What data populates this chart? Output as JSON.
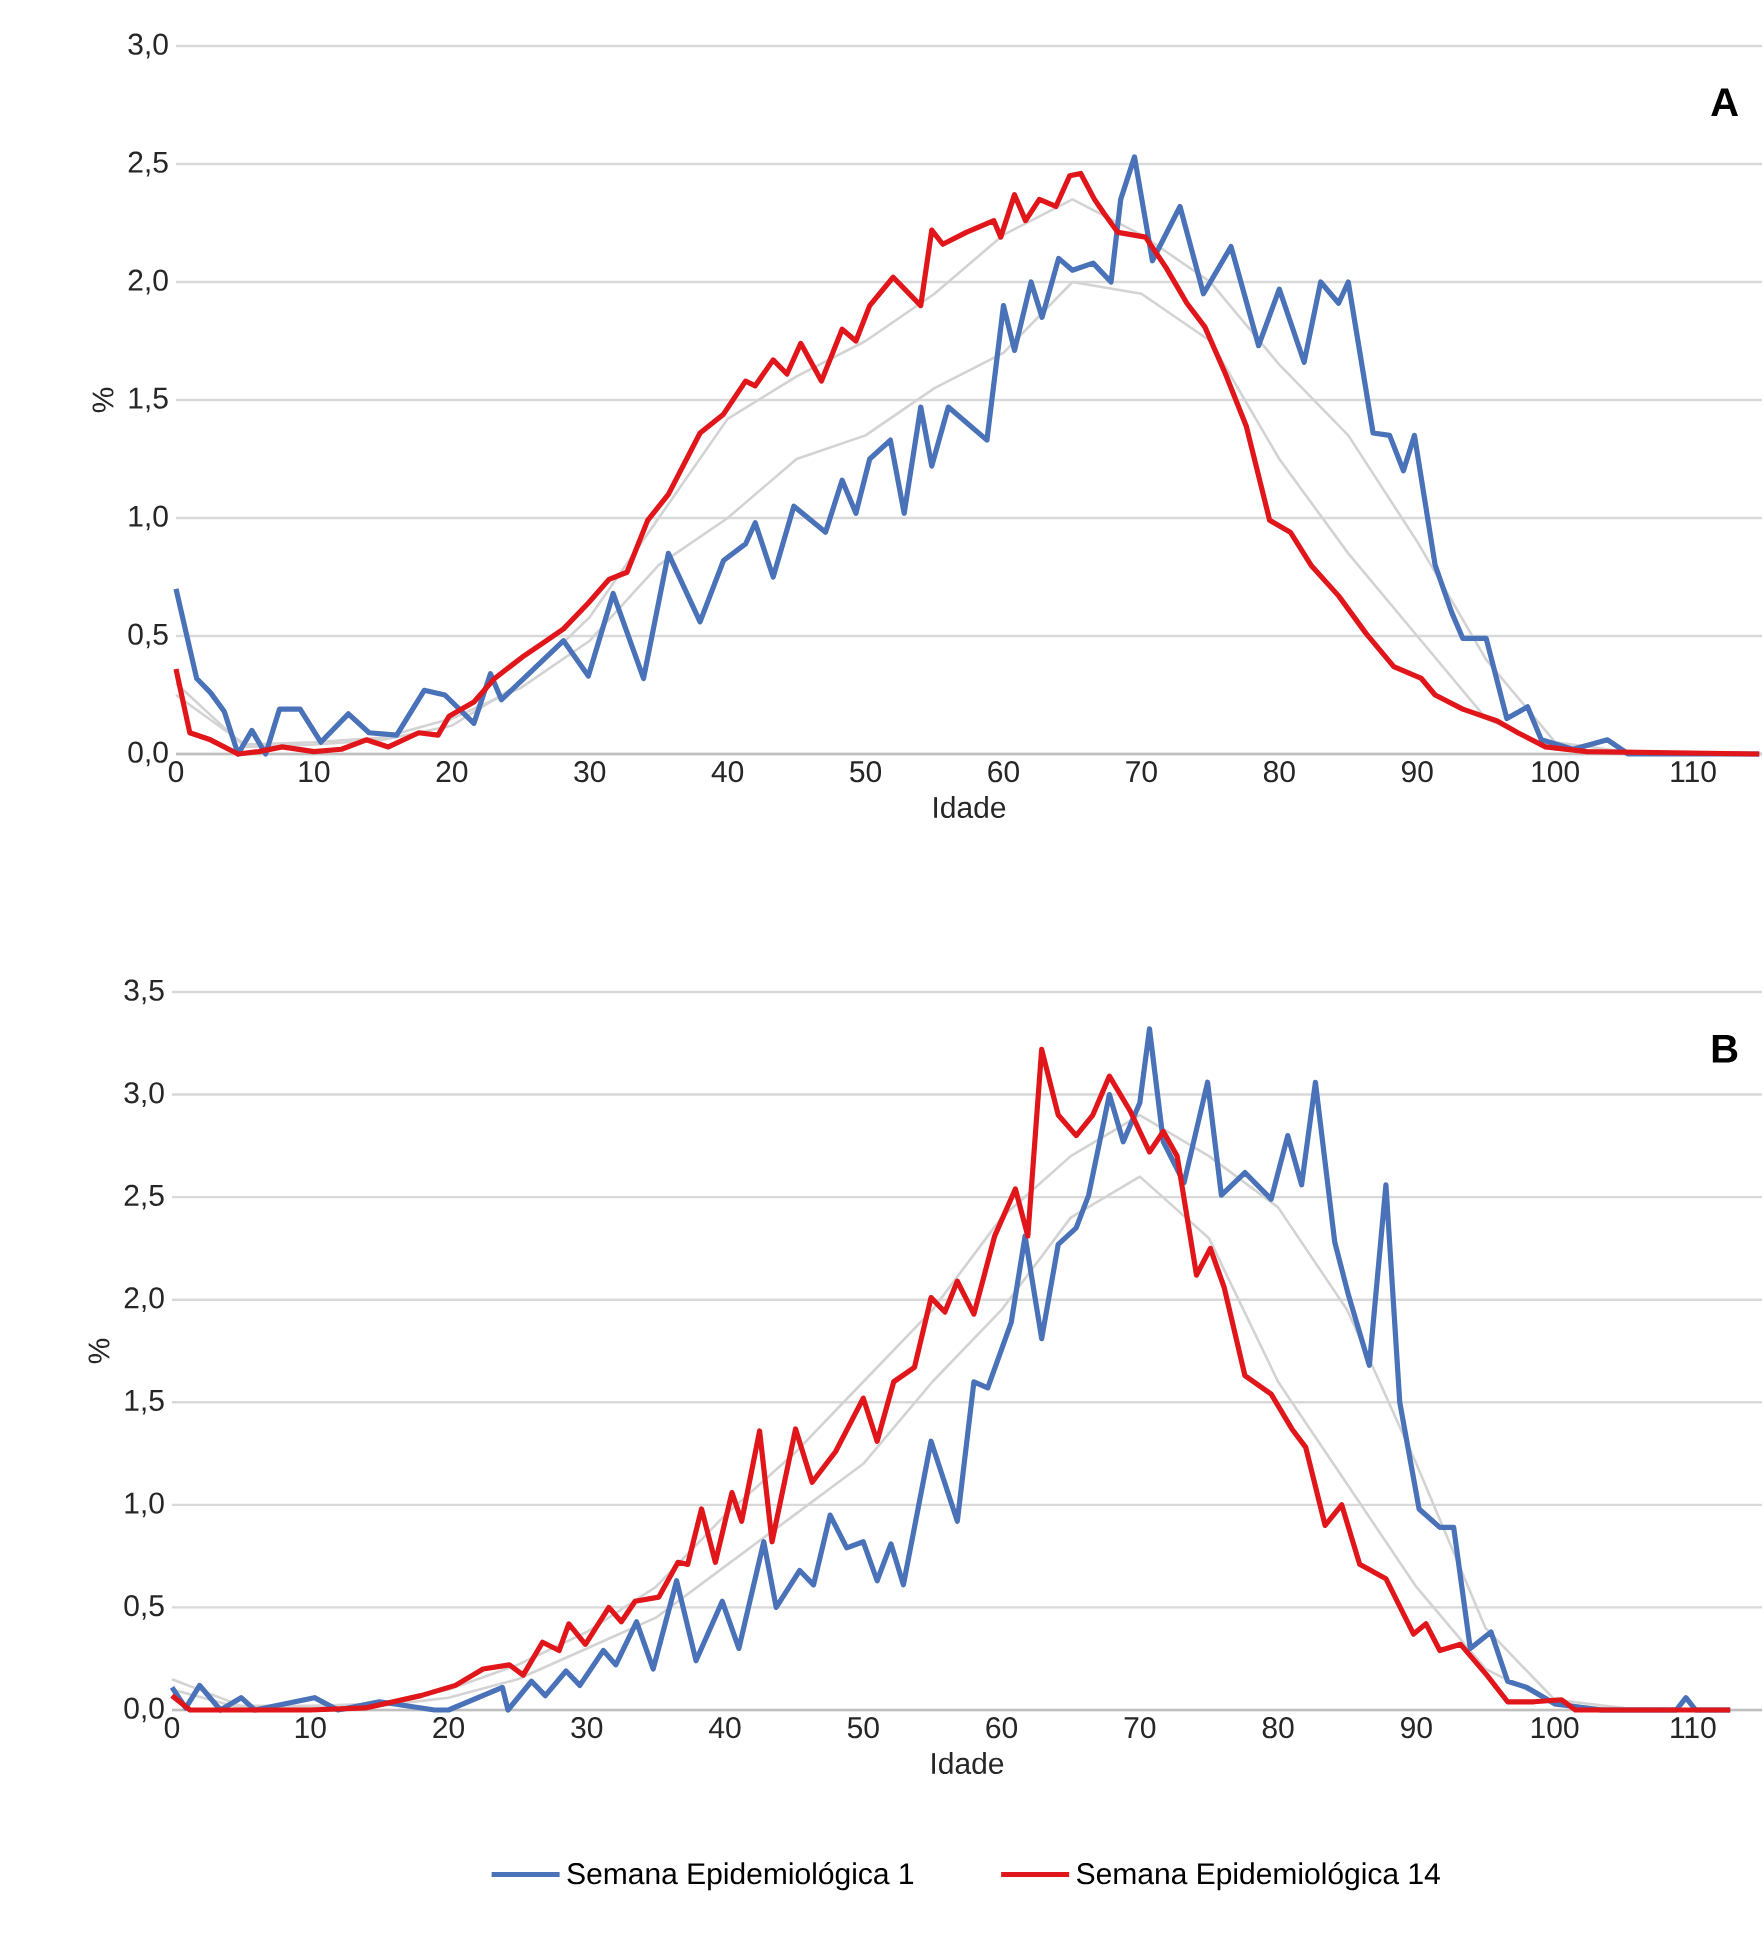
{
  "chart_data": [
    {
      "type": "line",
      "xlabel": "Idade",
      "ylabel": "%",
      "annotations": [
        "A"
      ],
      "grid": "y",
      "line_style": "solid",
      "xlim": [
        0,
        115
      ],
      "xticks": [
        0,
        10,
        20,
        30,
        40,
        50,
        60,
        70,
        80,
        90,
        100,
        110
      ],
      "ylim": [
        0,
        3
      ],
      "yticks": [
        {
          "value": 0,
          "label": "0,0"
        },
        {
          "value": 0.5,
          "label": "0,5"
        },
        {
          "value": 1,
          "label": "1,0"
        },
        {
          "value": 1.5,
          "label": "1,5"
        },
        {
          "value": 2,
          "label": "2,0"
        },
        {
          "value": 2.5,
          "label": "2,5"
        },
        {
          "value": 3,
          "label": "3,0"
        }
      ],
      "series": [
        {
          "color": "#d3d3d3",
          "x": [
            0,
            5,
            10,
            15,
            20,
            25,
            30,
            35,
            40,
            45,
            50,
            55,
            60,
            65,
            70,
            75,
            80,
            85,
            90,
            95,
            100,
            105,
            115
          ],
          "values": [
            0.3,
            0.03,
            0.04,
            0.06,
            0.12,
            0.3,
            0.58,
            1.0,
            1.42,
            1.6,
            1.75,
            1.95,
            2.2,
            2.35,
            2.2,
            2.0,
            1.65,
            1.35,
            0.9,
            0.4,
            0.05,
            0.01,
            0
          ]
        },
        {
          "color": "#d3d3d3",
          "x": [
            0,
            5,
            10,
            15,
            20,
            25,
            30,
            35,
            40,
            45,
            50,
            55,
            60,
            65,
            70,
            75,
            80,
            85,
            90,
            95,
            100,
            105,
            115
          ],
          "values": [
            0.25,
            0.04,
            0.05,
            0.07,
            0.15,
            0.28,
            0.48,
            0.8,
            1.0,
            1.25,
            1.35,
            1.55,
            1.7,
            2.0,
            1.95,
            1.75,
            1.25,
            0.85,
            0.5,
            0.15,
            0.02,
            0.01,
            0
          ]
        },
        {
          "color": "#4a72b8",
          "x": [
            0,
            1.5,
            2.5,
            3.5,
            4.5,
            5.5,
            6.5,
            7.5,
            9,
            10.5,
            12.5,
            14,
            16,
            18,
            19.5,
            21.6,
            22.8,
            23.6,
            28.1,
            29.9,
            31.7,
            33.9,
            35.7,
            38,
            39.7,
            41.3,
            42,
            43.3,
            44.8,
            47.1,
            48.3,
            49.3,
            50.3,
            51.8,
            52.8,
            54,
            54.8,
            56,
            58.8,
            60,
            60.8,
            62,
            62.8,
            64,
            65,
            66.5,
            67.8,
            68.5,
            69.5,
            70.8,
            72.8,
            74.5,
            76.5,
            78.5,
            80,
            81.8,
            83,
            84.3,
            85,
            86.8,
            88,
            89,
            89.8,
            91.3,
            92.5,
            93.3,
            95,
            96.5,
            98,
            99,
            101.3,
            103.8,
            105.3,
            114.8
          ],
          "values": [
            0.7,
            0.32,
            0.26,
            0.18,
            0,
            0.1,
            0,
            0.19,
            0.19,
            0.05,
            0.17,
            0.09,
            0.08,
            0.27,
            0.25,
            0.13,
            0.34,
            0.23,
            0.48,
            0.33,
            0.68,
            0.32,
            0.85,
            0.56,
            0.82,
            0.89,
            0.98,
            0.75,
            1.05,
            0.94,
            1.16,
            1.02,
            1.25,
            1.33,
            1.02,
            1.47,
            1.22,
            1.47,
            1.33,
            1.9,
            1.71,
            2.0,
            1.85,
            2.1,
            2.05,
            2.08,
            2.0,
            2.35,
            2.53,
            2.09,
            2.32,
            1.95,
            2.15,
            1.73,
            1.97,
            1.66,
            2.0,
            1.91,
            2.0,
            1.36,
            1.35,
            1.2,
            1.35,
            0.8,
            0.6,
            0.49,
            0.49,
            0.15,
            0.2,
            0.06,
            0.02,
            0.06,
            0,
            0
          ]
        },
        {
          "color": "#e0161b",
          "x": [
            0,
            1,
            2.5,
            4.5,
            6,
            7.7,
            10,
            12,
            13.8,
            15.4,
            17.6,
            19,
            19.8,
            21.6,
            23.1,
            25.1,
            26.6,
            28.1,
            29.9,
            31.4,
            32.7,
            34.2,
            35.7,
            38,
            39.7,
            41.3,
            42,
            43.3,
            44.3,
            45.3,
            46.8,
            48.3,
            49.3,
            50.3,
            52,
            54,
            54.8,
            55.6,
            57.3,
            59.3,
            59.8,
            60.8,
            61.6,
            62.6,
            63.8,
            64.8,
            65.6,
            66.6,
            67.3,
            68.3,
            70.3,
            71.8,
            73.3,
            74.6,
            76.1,
            77.6,
            79.3,
            80.8,
            82.3,
            84.3,
            86.3,
            88.3,
            90.3,
            91.3,
            93.3,
            95.8,
            97.3,
            99.3,
            102.3,
            114.8
          ],
          "values": [
            0.36,
            0.09,
            0.06,
            0,
            0.01,
            0.03,
            0.01,
            0.02,
            0.06,
            0.03,
            0.09,
            0.08,
            0.16,
            0.22,
            0.32,
            0.41,
            0.47,
            0.53,
            0.64,
            0.74,
            0.77,
            0.99,
            1.1,
            1.36,
            1.44,
            1.58,
            1.56,
            1.67,
            1.61,
            1.74,
            1.58,
            1.8,
            1.75,
            1.9,
            2.02,
            1.9,
            2.22,
            2.16,
            2.21,
            2.26,
            2.19,
            2.37,
            2.26,
            2.35,
            2.32,
            2.45,
            2.46,
            2.35,
            2.29,
            2.21,
            2.19,
            2.06,
            1.91,
            1.81,
            1.61,
            1.39,
            0.99,
            0.94,
            0.8,
            0.67,
            0.51,
            0.37,
            0.32,
            0.25,
            0.19,
            0.14,
            0.09,
            0.03,
            0.01,
            0
          ]
        }
      ]
    },
    {
      "type": "line",
      "xlabel": "Idade",
      "ylabel": "%",
      "annotations": [
        "B"
      ],
      "grid": "y",
      "line_style": "solid",
      "legend": "bottom",
      "xlim": [
        0,
        115
      ],
      "xticks": [
        0,
        10,
        20,
        30,
        40,
        50,
        60,
        70,
        80,
        90,
        100,
        110
      ],
      "ylim": [
        0,
        3.5
      ],
      "yticks": [
        {
          "value": 0,
          "label": "0,0"
        },
        {
          "value": 0.5,
          "label": "0,5"
        },
        {
          "value": 1,
          "label": "1,0"
        },
        {
          "value": 1.5,
          "label": "1,5"
        },
        {
          "value": 2,
          "label": "2,0"
        },
        {
          "value": 2.5,
          "label": "2,5"
        },
        {
          "value": 3,
          "label": "3,0"
        },
        {
          "value": 3.5,
          "label": "3,5"
        }
      ],
      "series": [
        {
          "color": "#d3d3d3",
          "x": [
            0,
            5,
            10,
            15,
            20,
            25,
            30,
            35,
            40,
            45,
            50,
            55,
            60,
            65,
            70,
            75,
            80,
            85,
            90,
            95,
            100,
            105,
            112
          ],
          "values": [
            0.15,
            0.02,
            0.02,
            0.03,
            0.1,
            0.22,
            0.38,
            0.6,
            0.95,
            1.25,
            1.6,
            1.95,
            2.4,
            2.7,
            2.9,
            2.7,
            2.45,
            1.95,
            1.2,
            0.4,
            0.05,
            0.01,
            0
          ]
        },
        {
          "color": "#d3d3d3",
          "x": [
            0,
            5,
            10,
            15,
            20,
            25,
            30,
            35,
            40,
            45,
            50,
            55,
            60,
            65,
            70,
            75,
            80,
            85,
            90,
            95,
            100,
            105,
            112
          ],
          "values": [
            0.1,
            0.01,
            0.01,
            0.02,
            0.06,
            0.15,
            0.3,
            0.45,
            0.7,
            0.95,
            1.2,
            1.6,
            1.95,
            2.4,
            2.6,
            2.3,
            1.6,
            1.1,
            0.6,
            0.2,
            0.03,
            0,
            0
          ]
        },
        {
          "name": "Semana Epidemiológica 1",
          "color": "#4a72b8",
          "x": [
            0,
            1,
            2,
            3.5,
            5,
            6,
            10.3,
            12,
            15,
            19,
            20,
            23.9,
            24.3,
            26,
            27,
            28.5,
            29.5,
            31.2,
            32.1,
            33.6,
            34.8,
            36.5,
            37.9,
            39.8,
            41,
            42.8,
            43.7,
            45.4,
            46.4,
            47.6,
            48.8,
            50,
            51,
            52,
            52.9,
            54.9,
            56.8,
            58,
            59,
            60.7,
            61.7,
            62.9,
            64.1,
            65.4,
            66.3,
            67.8,
            68.8,
            70,
            70.7,
            71.7,
            73.2,
            74.9,
            75.9,
            77.6,
            79.5,
            80.7,
            81.7,
            82.7,
            84.1,
            85.1,
            86.6,
            87.8,
            88.8,
            90.2,
            91.7,
            92.7,
            93.9,
            95.4,
            96.6,
            98,
            100,
            103.4,
            108.8,
            109.5,
            110.2,
            112.7
          ],
          "values": [
            0.11,
            0.01,
            0.12,
            0,
            0.06,
            0,
            0.06,
            0,
            0.04,
            0,
            0,
            0.11,
            0,
            0.14,
            0.07,
            0.19,
            0.12,
            0.29,
            0.22,
            0.43,
            0.2,
            0.63,
            0.24,
            0.53,
            0.3,
            0.82,
            0.5,
            0.68,
            0.61,
            0.95,
            0.79,
            0.82,
            0.63,
            0.81,
            0.61,
            1.31,
            0.92,
            1.6,
            1.57,
            1.89,
            2.31,
            1.81,
            2.27,
            2.35,
            2.51,
            3.0,
            2.77,
            2.96,
            3.32,
            2.77,
            2.57,
            3.06,
            2.51,
            2.62,
            2.49,
            2.8,
            2.56,
            3.06,
            2.28,
            2.02,
            1.68,
            2.56,
            1.5,
            0.98,
            0.89,
            0.89,
            0.3,
            0.38,
            0.14,
            0.11,
            0.03,
            0,
            0,
            0.06,
            0,
            0
          ]
        },
        {
          "name": "Semana Epidemiológica 14",
          "color": "#e0161b",
          "x": [
            0,
            1.3,
            6,
            10,
            14,
            18,
            20.5,
            22.5,
            24.4,
            25.4,
            26.8,
            28,
            28.7,
            29.9,
            31.6,
            32.5,
            33.5,
            35.2,
            36.6,
            37.3,
            38.3,
            39.3,
            40.5,
            41.2,
            42.5,
            43.4,
            45.1,
            46.3,
            48,
            50,
            51,
            52.2,
            53.7,
            54.9,
            55.9,
            56.8,
            58,
            59.5,
            61,
            61.9,
            62.9,
            64.1,
            65.4,
            66.6,
            67.8,
            69.3,
            70.7,
            71.7,
            72.7,
            74.1,
            75.1,
            76.1,
            77.6,
            79.5,
            81,
            82,
            83.4,
            84.6,
            85.9,
            87.8,
            89.8,
            90.7,
            91.7,
            93.2,
            95.1,
            96.6,
            98.5,
            100.5,
            101.5,
            112.7
          ],
          "values": [
            0.07,
            0,
            0,
            0,
            0.01,
            0.07,
            0.12,
            0.2,
            0.22,
            0.17,
            0.33,
            0.29,
            0.42,
            0.32,
            0.5,
            0.43,
            0.53,
            0.55,
            0.72,
            0.71,
            0.98,
            0.72,
            1.06,
            0.92,
            1.36,
            0.82,
            1.37,
            1.11,
            1.26,
            1.52,
            1.31,
            1.6,
            1.67,
            2.01,
            1.94,
            2.09,
            1.93,
            2.31,
            2.54,
            2.31,
            3.22,
            2.9,
            2.8,
            2.9,
            3.09,
            2.92,
            2.72,
            2.82,
            2.7,
            2.12,
            2.25,
            2.06,
            1.63,
            1.54,
            1.37,
            1.28,
            0.9,
            1.0,
            0.71,
            0.64,
            0.37,
            0.42,
            0.29,
            0.32,
            0.17,
            0.04,
            0.04,
            0.05,
            0,
            0
          ]
        }
      ]
    }
  ]
}
